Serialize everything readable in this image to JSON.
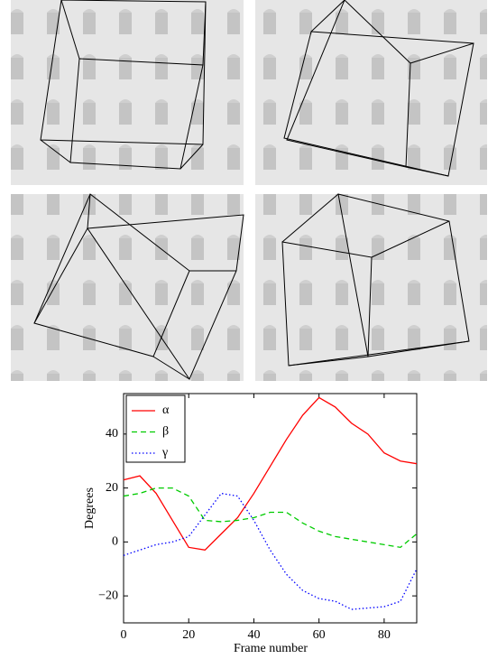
{
  "chart_data": {
    "type": "line",
    "xlabel": "Frame number",
    "ylabel": "Degrees",
    "x": [
      0,
      5,
      10,
      15,
      20,
      25,
      30,
      35,
      40,
      45,
      50,
      55,
      60,
      65,
      70,
      75,
      80,
      85,
      90
    ],
    "series": [
      {
        "name": "α",
        "color": "#ff0000",
        "style": "solid",
        "values": [
          23,
          24.5,
          18,
          8,
          -2,
          -3,
          3,
          9,
          18,
          28,
          38,
          47,
          53.5,
          50,
          44,
          40,
          33,
          30,
          29
        ]
      },
      {
        "name": "β",
        "color": "#00cc00",
        "style": "dashed",
        "values": [
          17,
          18,
          20,
          20,
          17,
          8,
          7.5,
          8,
          9,
          11,
          11,
          7,
          4,
          2,
          1,
          0,
          -1,
          -2,
          3
        ]
      },
      {
        "name": "γ",
        "color": "#0000ff",
        "style": "dotted",
        "values": [
          -5,
          -3,
          -1,
          0,
          2,
          10,
          18,
          17,
          8,
          -3,
          -12,
          -18,
          -21,
          -22,
          -25,
          -24.5,
          -24,
          -22,
          -10
        ]
      }
    ],
    "xlim": [
      0,
      90
    ],
    "xticks": [
      0,
      20,
      40,
      60,
      80
    ],
    "ylim": [
      -30,
      55
    ],
    "yticks": [
      {
        "value": -20,
        "label": "−20"
      },
      0,
      20,
      40
    ],
    "legend": "upper left"
  }
}
